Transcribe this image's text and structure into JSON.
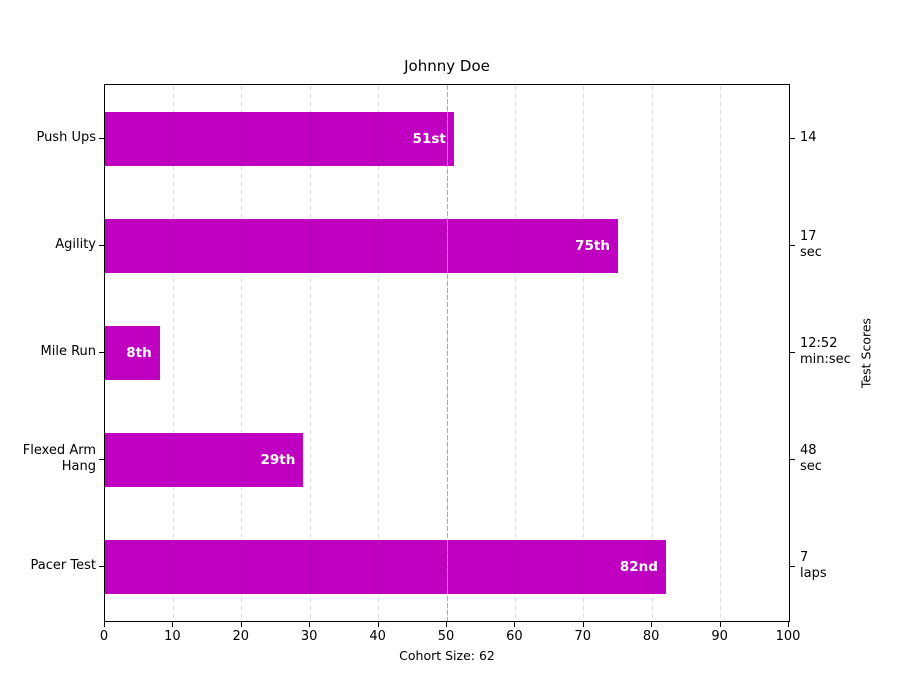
{
  "chart_data": {
    "type": "bar",
    "orientation": "horizontal",
    "title": "Johnny Doe",
    "xlabel": "Cohort Size: 62",
    "ylabel_right": "Test Scores",
    "xlim": [
      0,
      100
    ],
    "x_ticks": [
      0,
      10,
      20,
      30,
      40,
      50,
      60,
      70,
      80,
      90,
      100
    ],
    "grid": "vertical dashed",
    "median_line_x": 50,
    "bar_color": "#c000c0",
    "bar_label_color": "#ffffff",
    "categories": [
      "Push Ups",
      "Agility",
      "Mile Run",
      "Flexed Arm\nHang",
      "Pacer Test"
    ],
    "values": [
      51,
      75,
      8,
      29,
      82
    ],
    "bar_labels": [
      "51st",
      "75th",
      "8th",
      "29th",
      "82nd"
    ],
    "right_labels": [
      "14",
      "17\nsec",
      "12:52\nmin:sec",
      "48\nsec",
      "7\nlaps"
    ]
  }
}
